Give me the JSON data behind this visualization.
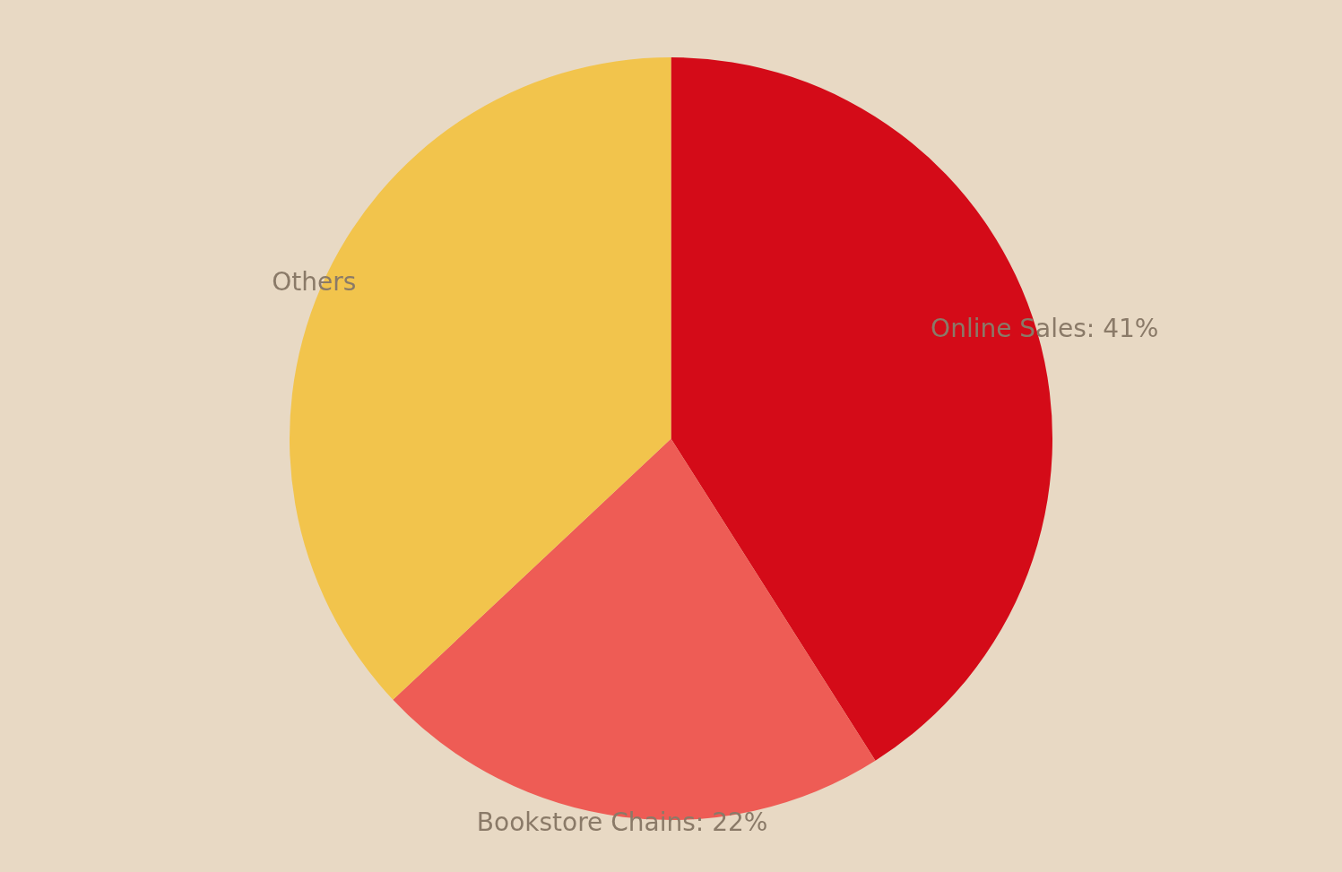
{
  "chart_data": {
    "type": "pie",
    "categories": [
      "Online Sales",
      "Bookstore Chains",
      "Others"
    ],
    "values": [
      41,
      22,
      37
    ],
    "colors": [
      "#d40b18",
      "#ee5c55",
      "#f2c44c"
    ],
    "value_labels": [
      "41%",
      "22%",
      null
    ],
    "legend": false
  }
}
